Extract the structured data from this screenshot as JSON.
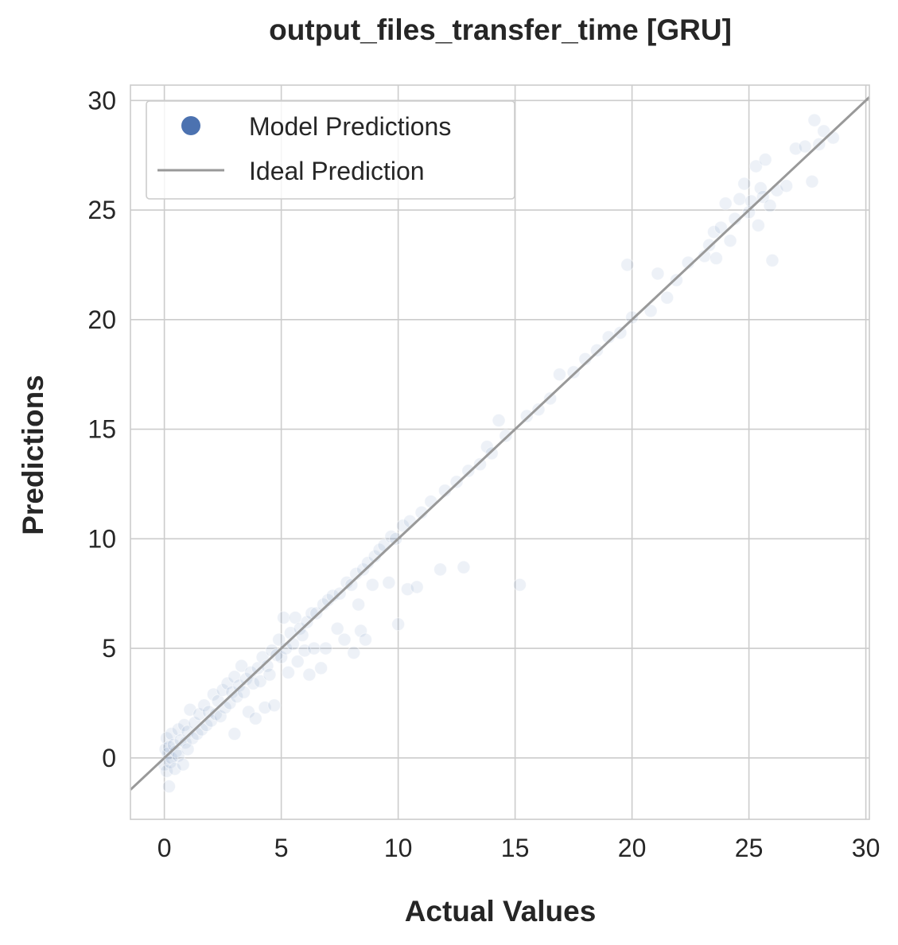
{
  "chart_data": {
    "type": "scatter",
    "title": "output_files_transfer_time [GRU]",
    "xlabel": "Actual Values",
    "ylabel": "Predictions",
    "xlim": [
      -1.45,
      30.15
    ],
    "ylim": [
      -2.8,
      30.7
    ],
    "xticks": [
      0,
      5,
      10,
      15,
      20,
      25,
      30
    ],
    "yticks": [
      0,
      5,
      10,
      15,
      20,
      25,
      30
    ],
    "grid": true,
    "legend": {
      "placement": "upper-left",
      "entries": [
        {
          "label": "Model Predictions",
          "marker": "circle",
          "color": "#4c72b0"
        },
        {
          "label": "Ideal Prediction",
          "marker": "line",
          "color": "#999999"
        }
      ]
    },
    "series": [
      {
        "name": "Model Predictions",
        "color": "#4c72b0",
        "opacity": 0.1,
        "points": [
          [
            0.0,
            -0.3
          ],
          [
            0.05,
            0.4
          ],
          [
            0.1,
            -0.6
          ],
          [
            0.1,
            0.9
          ],
          [
            0.15,
            0.2
          ],
          [
            0.2,
            -1.3
          ],
          [
            0.2,
            0.5
          ],
          [
            0.25,
            -0.2
          ],
          [
            0.3,
            1.1
          ],
          [
            0.3,
            0.0
          ],
          [
            0.4,
            0.6
          ],
          [
            0.45,
            -0.5
          ],
          [
            0.5,
            0.3
          ],
          [
            0.6,
            1.3
          ],
          [
            0.6,
            0.1
          ],
          [
            0.7,
            0.8
          ],
          [
            0.8,
            -0.3
          ],
          [
            0.85,
            1.5
          ],
          [
            0.9,
            0.7
          ],
          [
            1.0,
            1.2
          ],
          [
            1.0,
            0.4
          ],
          [
            1.1,
            2.2
          ],
          [
            1.2,
            0.9
          ],
          [
            1.3,
            1.6
          ],
          [
            1.4,
            1.1
          ],
          [
            1.5,
            2.0
          ],
          [
            1.6,
            1.3
          ],
          [
            1.7,
            2.4
          ],
          [
            1.8,
            1.5
          ],
          [
            1.9,
            2.1
          ],
          [
            2.0,
            1.7
          ],
          [
            2.1,
            2.9
          ],
          [
            2.2,
            2.0
          ],
          [
            2.3,
            2.6
          ],
          [
            2.4,
            1.9
          ],
          [
            2.5,
            3.1
          ],
          [
            2.6,
            2.3
          ],
          [
            2.7,
            3.4
          ],
          [
            2.8,
            2.5
          ],
          [
            2.9,
            3.0
          ],
          [
            3.0,
            1.1
          ],
          [
            3.0,
            3.7
          ],
          [
            3.1,
            2.8
          ],
          [
            3.2,
            3.3
          ],
          [
            3.3,
            4.2
          ],
          [
            3.4,
            3.0
          ],
          [
            3.5,
            3.6
          ],
          [
            3.6,
            2.1
          ],
          [
            3.7,
            3.9
          ],
          [
            3.8,
            3.4
          ],
          [
            3.9,
            1.8
          ],
          [
            4.0,
            4.1
          ],
          [
            4.1,
            3.5
          ],
          [
            4.2,
            4.6
          ],
          [
            4.3,
            2.3
          ],
          [
            4.4,
            4.2
          ],
          [
            4.5,
            3.8
          ],
          [
            4.6,
            4.9
          ],
          [
            4.7,
            2.4
          ],
          [
            4.8,
            4.7
          ],
          [
            4.9,
            5.4
          ],
          [
            5.0,
            4.6
          ],
          [
            5.1,
            6.4
          ],
          [
            5.2,
            5.0
          ],
          [
            5.3,
            3.9
          ],
          [
            5.4,
            5.7
          ],
          [
            5.5,
            5.2
          ],
          [
            5.6,
            6.4
          ],
          [
            5.7,
            4.4
          ],
          [
            5.8,
            5.9
          ],
          [
            5.9,
            5.6
          ],
          [
            6.0,
            4.9
          ],
          [
            6.1,
            6.2
          ],
          [
            6.2,
            3.8
          ],
          [
            6.3,
            6.6
          ],
          [
            6.4,
            5.0
          ],
          [
            6.5,
            6.6
          ],
          [
            6.7,
            4.1
          ],
          [
            6.8,
            7.0
          ],
          [
            6.9,
            5.0
          ],
          [
            7.0,
            7.2
          ],
          [
            7.2,
            7.4
          ],
          [
            7.4,
            5.9
          ],
          [
            7.5,
            7.5
          ],
          [
            7.7,
            5.4
          ],
          [
            7.8,
            8.0
          ],
          [
            8.0,
            7.9
          ],
          [
            8.1,
            4.8
          ],
          [
            8.2,
            8.4
          ],
          [
            8.3,
            7.0
          ],
          [
            8.4,
            5.8
          ],
          [
            8.5,
            8.6
          ],
          [
            8.6,
            5.4
          ],
          [
            8.7,
            8.9
          ],
          [
            8.9,
            7.9
          ],
          [
            9.0,
            9.2
          ],
          [
            9.2,
            9.5
          ],
          [
            9.4,
            9.7
          ],
          [
            9.6,
            8.0
          ],
          [
            9.7,
            10.1
          ],
          [
            9.9,
            10.0
          ],
          [
            10.0,
            6.1
          ],
          [
            10.2,
            10.6
          ],
          [
            10.4,
            7.7
          ],
          [
            10.5,
            10.8
          ],
          [
            10.8,
            7.8
          ],
          [
            11.0,
            11.2
          ],
          [
            11.4,
            11.7
          ],
          [
            11.8,
            8.6
          ],
          [
            12.0,
            12.2
          ],
          [
            12.5,
            12.6
          ],
          [
            12.8,
            8.7
          ],
          [
            13.0,
            13.1
          ],
          [
            13.5,
            13.4
          ],
          [
            13.8,
            14.2
          ],
          [
            14.0,
            13.9
          ],
          [
            14.3,
            15.4
          ],
          [
            14.6,
            14.7
          ],
          [
            15.2,
            7.9
          ],
          [
            15.5,
            15.6
          ],
          [
            16.0,
            15.9
          ],
          [
            16.5,
            16.4
          ],
          [
            16.9,
            17.5
          ],
          [
            17.5,
            17.6
          ],
          [
            18.0,
            18.2
          ],
          [
            18.5,
            18.6
          ],
          [
            19.0,
            19.2
          ],
          [
            19.5,
            19.4
          ],
          [
            19.8,
            22.5
          ],
          [
            20.0,
            20.1
          ],
          [
            20.8,
            20.4
          ],
          [
            21.1,
            22.1
          ],
          [
            21.5,
            21.0
          ],
          [
            21.9,
            21.8
          ],
          [
            22.4,
            22.6
          ],
          [
            23.1,
            22.9
          ],
          [
            23.3,
            23.4
          ],
          [
            23.5,
            24.0
          ],
          [
            23.6,
            22.8
          ],
          [
            23.8,
            24.2
          ],
          [
            24.0,
            25.3
          ],
          [
            24.2,
            23.6
          ],
          [
            24.4,
            24.6
          ],
          [
            24.6,
            25.5
          ],
          [
            24.8,
            26.2
          ],
          [
            25.0,
            24.9
          ],
          [
            25.1,
            25.4
          ],
          [
            25.3,
            27.0
          ],
          [
            25.4,
            24.3
          ],
          [
            25.5,
            26.0
          ],
          [
            25.6,
            25.6
          ],
          [
            25.7,
            27.3
          ],
          [
            25.9,
            25.2
          ],
          [
            26.0,
            22.7
          ],
          [
            26.2,
            25.9
          ],
          [
            26.6,
            26.1
          ],
          [
            27.0,
            27.8
          ],
          [
            27.4,
            27.9
          ],
          [
            27.7,
            26.3
          ],
          [
            27.8,
            29.1
          ],
          [
            28.0,
            28.0
          ],
          [
            28.2,
            28.6
          ],
          [
            28.6,
            28.3
          ]
        ]
      },
      {
        "name": "Ideal Prediction",
        "color": "#999999",
        "line": [
          [
            -1.45,
            -1.45
          ],
          [
            30.15,
            30.15
          ]
        ]
      }
    ]
  }
}
